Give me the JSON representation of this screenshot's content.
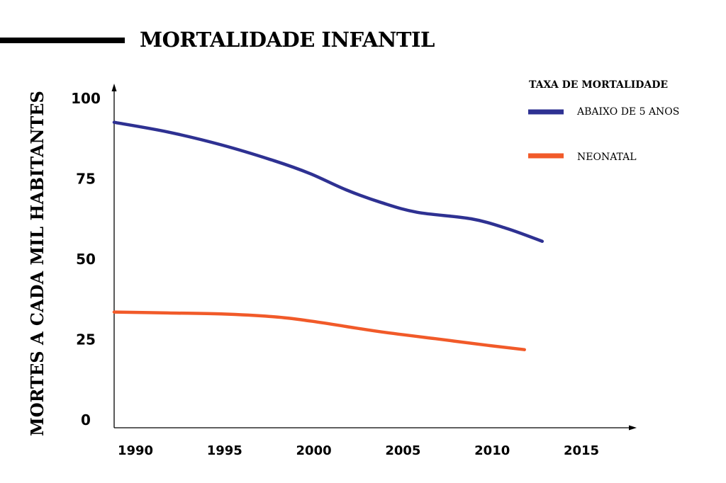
{
  "chart_data": {
    "type": "line",
    "title": "MORTALIDADE INFANTIL",
    "xlabel": "",
    "ylabel": "MORTES A CADA MIL HABITANTES",
    "xlim": [
      1990,
      2015
    ],
    "ylim": [
      0,
      100
    ],
    "x_ticks": [
      "1990",
      "1995",
      "2000",
      "2005",
      "2010",
      "2015"
    ],
    "y_ticks": [
      "0",
      "25",
      "50",
      "75",
      "100"
    ],
    "legend_title": "TAXA DE MORTALIDADE",
    "legend_position": "top-right",
    "grid": false,
    "series": [
      {
        "name": "ABAIXO DE 5 ANOS",
        "color": "#2e3192",
        "x": [
          1990,
          1993,
          1996,
          1999,
          2001,
          2003,
          2005,
          2007,
          2010,
          2012,
          2014
        ],
        "y": [
          95,
          92,
          88,
          83,
          79,
          74,
          70,
          67,
          65,
          62,
          58
        ]
      },
      {
        "name": "NEONATAL",
        "color": "#f15a29",
        "x": [
          1990,
          1993,
          1996,
          1999,
          2001,
          2003,
          2005,
          2008,
          2011,
          2013
        ],
        "y": [
          36,
          35.7,
          35.4,
          34.5,
          33.2,
          31.5,
          29.8,
          27.7,
          25.6,
          24.3
        ]
      }
    ]
  }
}
